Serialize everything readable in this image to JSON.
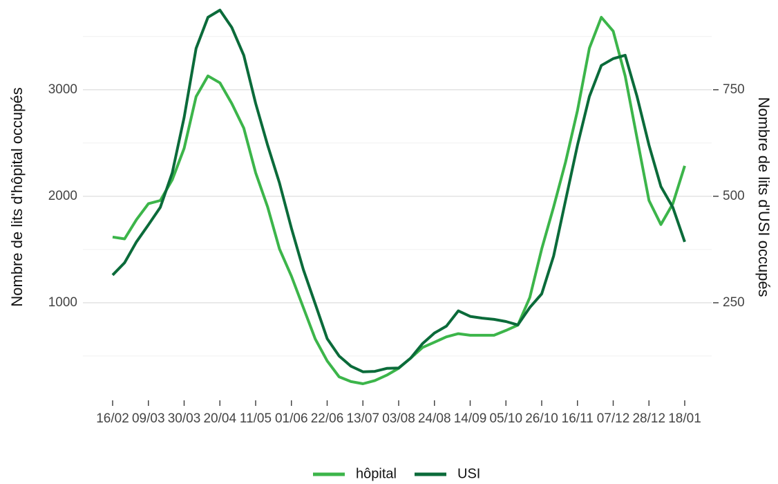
{
  "chart_data": {
    "type": "line",
    "y_label": "Nombre de lits d'hôpital occupés",
    "y2_label": "Nombre de lits d'USI occupés",
    "categories": [
      "16/02",
      null,
      null,
      "09/03",
      null,
      null,
      "30/03",
      null,
      null,
      "20/04",
      null,
      null,
      "11/05",
      null,
      null,
      "01/06",
      null,
      null,
      "22/06",
      null,
      null,
      "13/07",
      null,
      null,
      "03/08",
      null,
      null,
      "24/08",
      null,
      null,
      "14/09",
      null,
      null,
      "05/10",
      null,
      null,
      "26/10",
      null,
      null,
      "16/11",
      null,
      null,
      "07/12",
      null,
      null,
      "28/12",
      null,
      null,
      "18/01"
    ],
    "ylim": [
      110,
      3810
    ],
    "yticks": [
      1000,
      2000,
      3000
    ],
    "minor_yticks": [
      500,
      1500,
      2500,
      3500
    ],
    "y2lim": [
      27.5,
      952.5
    ],
    "y2ticks": [
      250,
      500,
      750
    ],
    "grid": true,
    "legend": "bottom",
    "series": [
      {
        "name": "hôpital",
        "color": "#3cb54a",
        "values": [
          1617,
          1600,
          1780,
          1930,
          1960,
          2155,
          2450,
          2935,
          3130,
          3065,
          2870,
          2640,
          2220,
          1900,
          1505,
          1250,
          955,
          660,
          455,
          305,
          260,
          240,
          270,
          320,
          385,
          480,
          580,
          630,
          680,
          710,
          695,
          695,
          695,
          740,
          790,
          1050,
          1505,
          1900,
          2320,
          2805,
          3390,
          3680,
          3550,
          3130,
          2545,
          1960,
          1735,
          1930,
          2285
        ]
      },
      {
        "name": "USI",
        "color": "#0b6b3a",
        "axis": "y2",
        "values": [
          315,
          344,
          393,
          433,
          474,
          555,
          685,
          847,
          920,
          937,
          896,
          831,
          718,
          620,
          531,
          425,
          328,
          247,
          166,
          125,
          101,
          88,
          89,
          96,
          97,
          120,
          154,
          179,
          195,
          231,
          218,
          214,
          211,
          206,
          198,
          239,
          271,
          360,
          490,
          620,
          734,
          807,
          823,
          831,
          734,
          620,
          523,
          474,
          393
        ]
      }
    ]
  }
}
